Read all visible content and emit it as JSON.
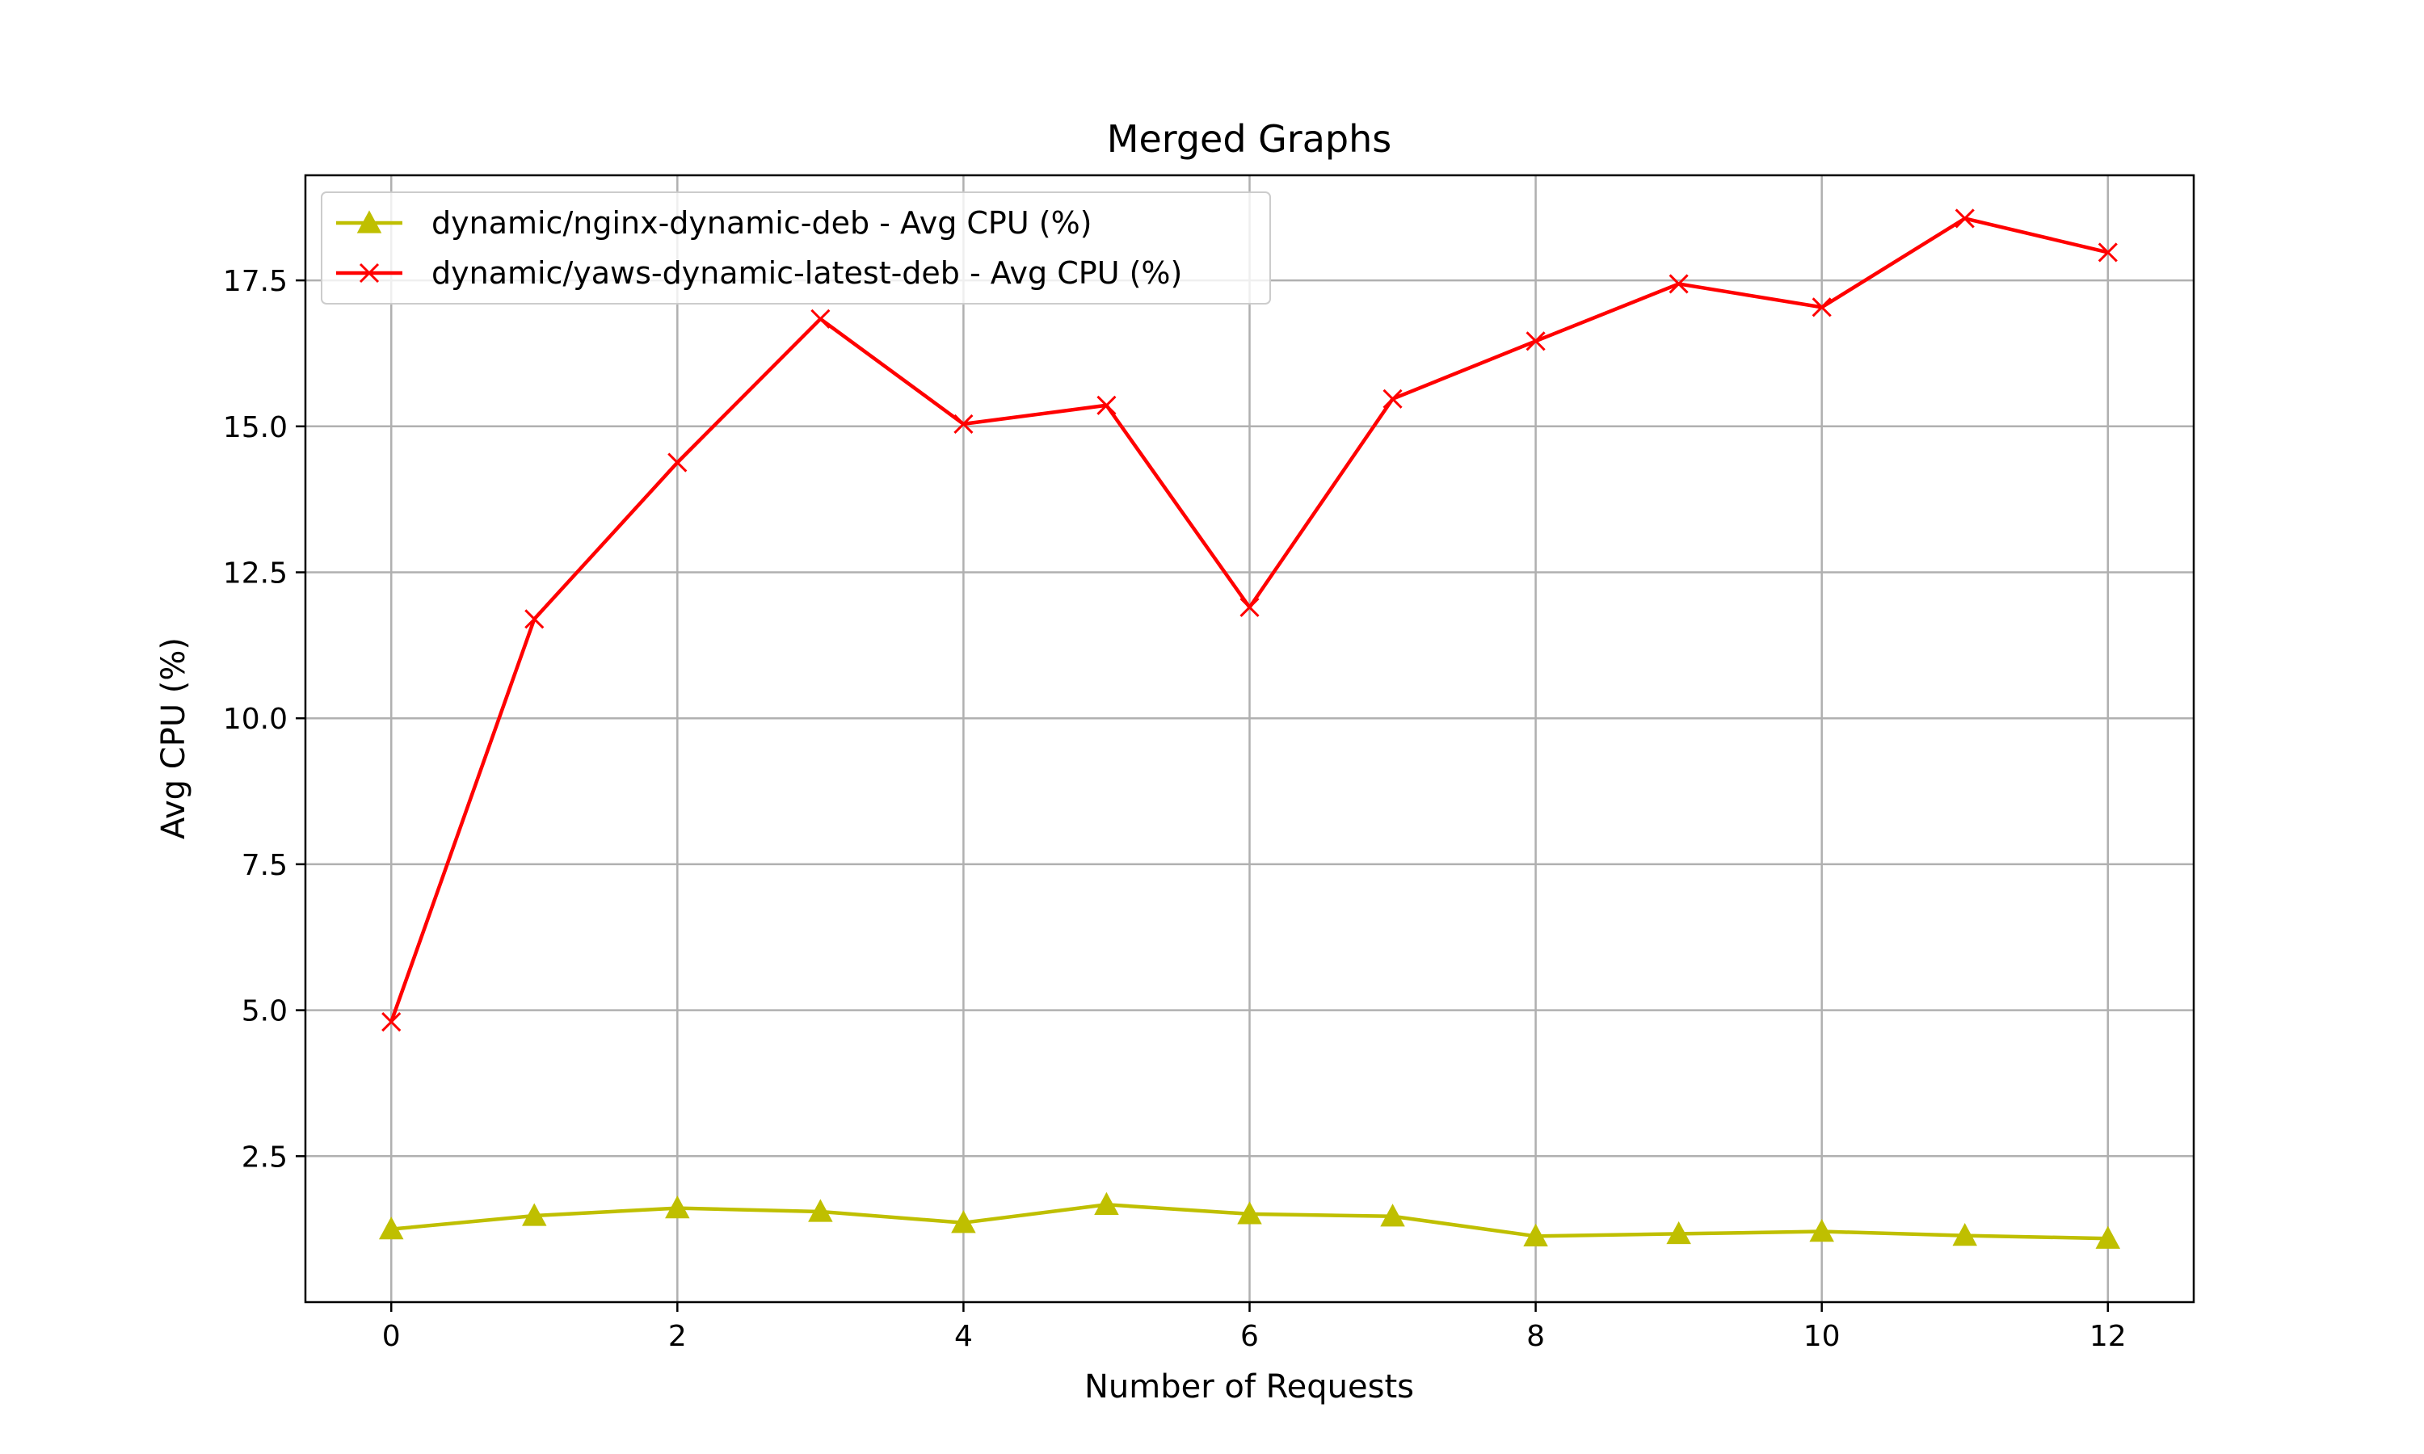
{
  "chart_data": {
    "type": "line",
    "title": "Merged Graphs",
    "xlabel": "Number of Requests",
    "ylabel": "Avg CPU (%)",
    "xlim": [
      -0.6,
      12.6
    ],
    "ylim": [
      0.0,
      19.3
    ],
    "x_ticks": [
      0,
      2,
      4,
      6,
      8,
      10,
      12
    ],
    "y_ticks": [
      2.5,
      5.0,
      7.5,
      10.0,
      12.5,
      15.0,
      17.5
    ],
    "x_tick_labels": [
      "0",
      "2",
      "4",
      "6",
      "8",
      "10",
      "12"
    ],
    "y_tick_labels": [
      "2.5",
      "5.0",
      "7.5",
      "10.0",
      "12.5",
      "15.0",
      "17.5"
    ],
    "grid": true,
    "legend_position": "top-left",
    "x": [
      0,
      1,
      2,
      3,
      4,
      5,
      6,
      7,
      8,
      9,
      10,
      11,
      12
    ],
    "series": [
      {
        "name": "dynamic/nginx-dynamic-deb - Avg CPU (%)",
        "color": "#bfbf00",
        "marker": "triangle",
        "values": [
          1.25,
          1.48,
          1.61,
          1.55,
          1.36,
          1.67,
          1.51,
          1.47,
          1.13,
          1.17,
          1.21,
          1.14,
          1.09
        ]
      },
      {
        "name": "dynamic/yaws-dynamic-latest-deb - Avg CPU (%)",
        "color": "#ff0000",
        "marker": "x",
        "values": [
          4.8,
          11.7,
          14.38,
          16.84,
          15.04,
          15.36,
          11.9,
          15.47,
          16.46,
          17.44,
          17.04,
          18.56,
          17.98
        ]
      }
    ]
  }
}
